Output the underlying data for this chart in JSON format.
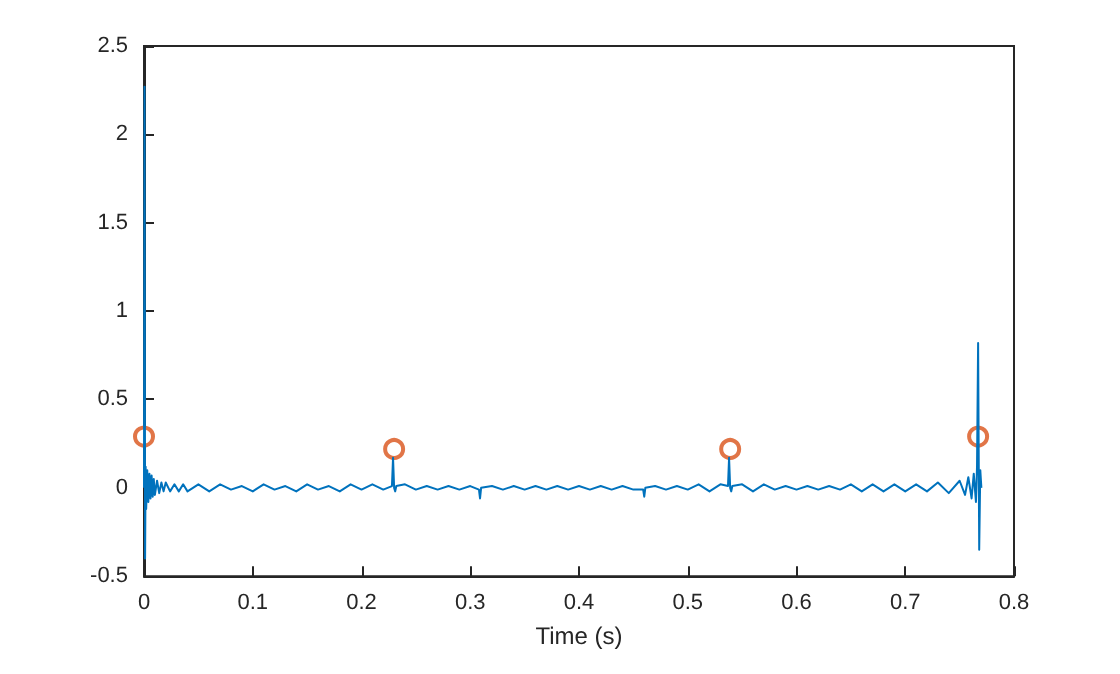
{
  "chart_data": {
    "type": "line",
    "xlabel": "Time (s)",
    "xlim": [
      0,
      0.8
    ],
    "ylim": [
      -0.5,
      2.5
    ],
    "xticks": [
      0,
      0.1,
      0.2,
      0.3,
      0.4,
      0.5,
      0.6,
      0.7,
      0.8
    ],
    "yticks": [
      -0.5,
      0,
      0.5,
      1,
      1.5,
      2,
      2.5
    ],
    "series": [
      {
        "color": "#0072bd",
        "marker": "none",
        "x": [
          0,
          0.0005,
          0.001,
          0.0015,
          0.002,
          0.003,
          0.004,
          0.005,
          0.006,
          0.007,
          0.008,
          0.009,
          0.01,
          0.012,
          0.014,
          0.016,
          0.018,
          0.02,
          0.024,
          0.028,
          0.032,
          0.036,
          0.04,
          0.05,
          0.06,
          0.07,
          0.08,
          0.09,
          0.1,
          0.11,
          0.12,
          0.13,
          0.14,
          0.15,
          0.16,
          0.17,
          0.18,
          0.19,
          0.2,
          0.21,
          0.22,
          0.228,
          0.229,
          0.23,
          0.231,
          0.232,
          0.24,
          0.25,
          0.26,
          0.27,
          0.28,
          0.29,
          0.3,
          0.308,
          0.309,
          0.31,
          0.32,
          0.33,
          0.34,
          0.35,
          0.36,
          0.37,
          0.38,
          0.39,
          0.4,
          0.41,
          0.42,
          0.43,
          0.44,
          0.45,
          0.459,
          0.46,
          0.461,
          0.47,
          0.48,
          0.49,
          0.5,
          0.51,
          0.52,
          0.53,
          0.537,
          0.538,
          0.539,
          0.54,
          0.541,
          0.55,
          0.56,
          0.57,
          0.58,
          0.59,
          0.6,
          0.61,
          0.62,
          0.63,
          0.64,
          0.65,
          0.66,
          0.67,
          0.68,
          0.69,
          0.7,
          0.71,
          0.72,
          0.73,
          0.74,
          0.75,
          0.755,
          0.758,
          0.761,
          0.763,
          0.765,
          0.766,
          0.767,
          0.768,
          0.769,
          0.77
        ],
        "values": [
          0,
          2.27,
          -0.4,
          0.12,
          -0.12,
          0.1,
          -0.08,
          0.08,
          -0.06,
          0.07,
          -0.05,
          0.05,
          -0.04,
          0.04,
          -0.03,
          0.03,
          -0.02,
          0.03,
          -0.02,
          0.02,
          -0.02,
          0.02,
          -0.02,
          0.02,
          -0.02,
          0.02,
          -0.01,
          0.01,
          -0.02,
          0.02,
          -0.01,
          0.01,
          -0.02,
          0.02,
          -0.01,
          0.01,
          -0.02,
          0.02,
          -0.01,
          0.02,
          -0.01,
          0.01,
          0.17,
          0.0,
          -0.02,
          0.01,
          0.02,
          -0.01,
          0.01,
          -0.01,
          0.01,
          -0.01,
          0.01,
          -0.01,
          -0.06,
          0.0,
          0.01,
          -0.01,
          0.01,
          -0.01,
          0.01,
          -0.01,
          0.01,
          -0.01,
          0.01,
          -0.01,
          0.01,
          -0.01,
          0.01,
          -0.01,
          -0.01,
          -0.05,
          0.0,
          0.01,
          -0.01,
          0.01,
          -0.01,
          0.02,
          -0.02,
          0.02,
          0.01,
          0.17,
          0.0,
          -0.02,
          0.01,
          0.02,
          -0.02,
          0.02,
          -0.01,
          0.01,
          -0.01,
          0.01,
          -0.01,
          0.01,
          -0.01,
          0.02,
          -0.02,
          0.02,
          -0.02,
          0.02,
          -0.02,
          0.02,
          -0.02,
          0.03,
          -0.03,
          0.04,
          -0.04,
          0.06,
          -0.06,
          0.08,
          -0.08,
          0.12,
          0.82,
          -0.35,
          0.1,
          0
        ]
      },
      {
        "type": "scatter",
        "color": "#d95319",
        "marker": "circle",
        "x": [
          0,
          0.23,
          0.539,
          0.767
        ],
        "values": [
          0.29,
          0.22,
          0.22,
          0.29
        ]
      }
    ]
  }
}
